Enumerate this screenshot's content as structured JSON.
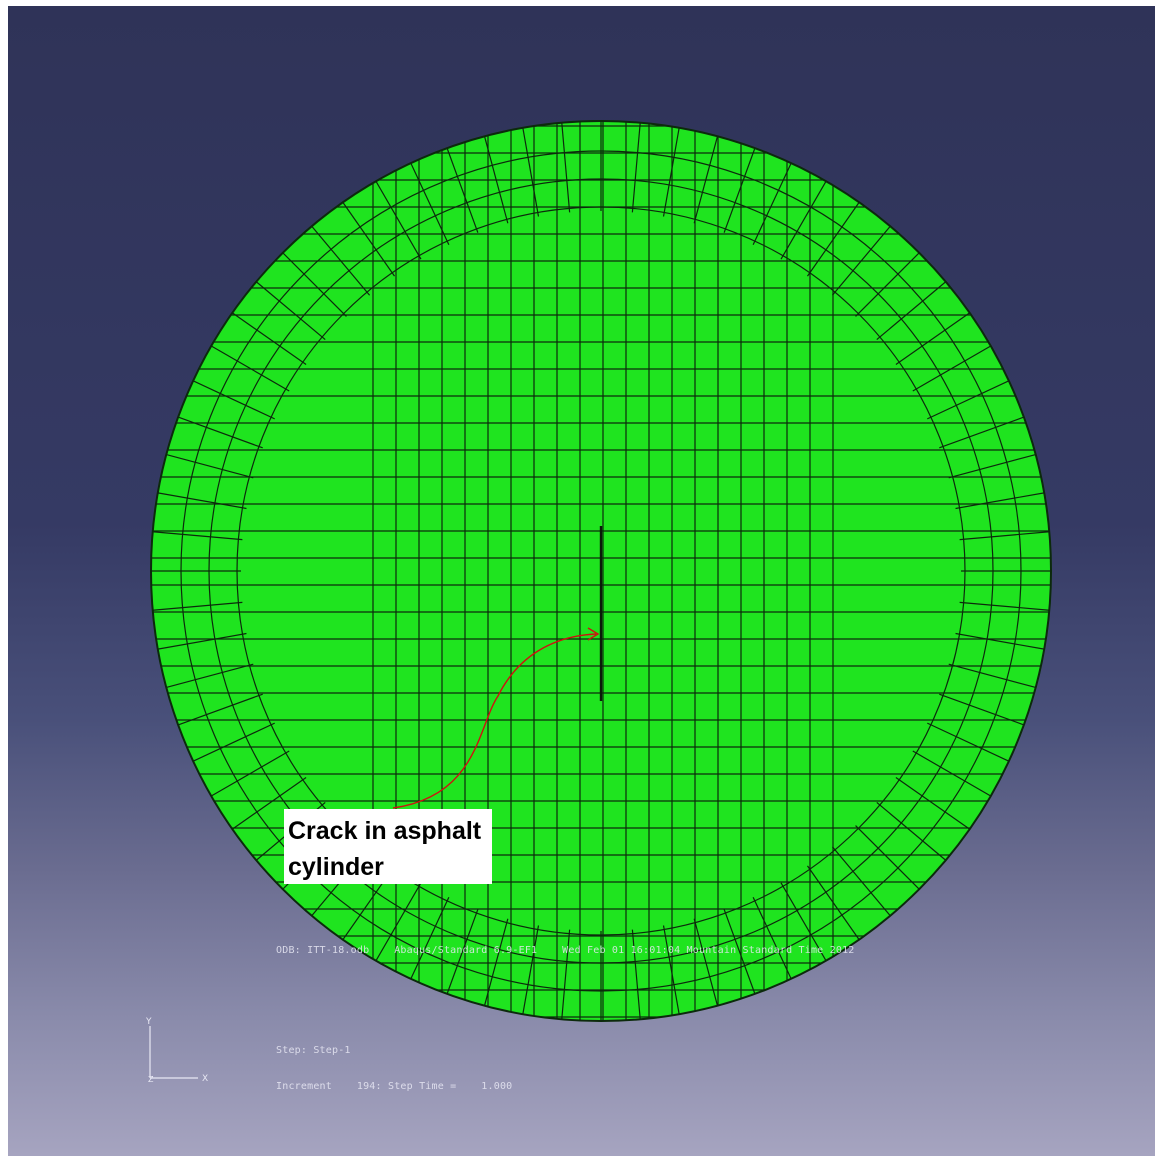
{
  "viewport": {
    "mesh_color": "#1fe41f",
    "mesh_line_color": "#0c2a0c"
  },
  "annotation": {
    "line1": "Crack in asphalt",
    "line2": "cylinder",
    "arrow_color": "#d01010"
  },
  "info": {
    "odb_line": "ODB: ITT-18.odb    Abaqus/Standard 6.9-EF1    Wed Feb 01 16:01:04 Mountain Standard Time 2012",
    "step_line": "Step: Step-1",
    "increment_line": "Increment    194: Step Time =    1.000"
  },
  "triad": {
    "y_label": "Y",
    "x_label": "X",
    "z_label": "Z"
  }
}
